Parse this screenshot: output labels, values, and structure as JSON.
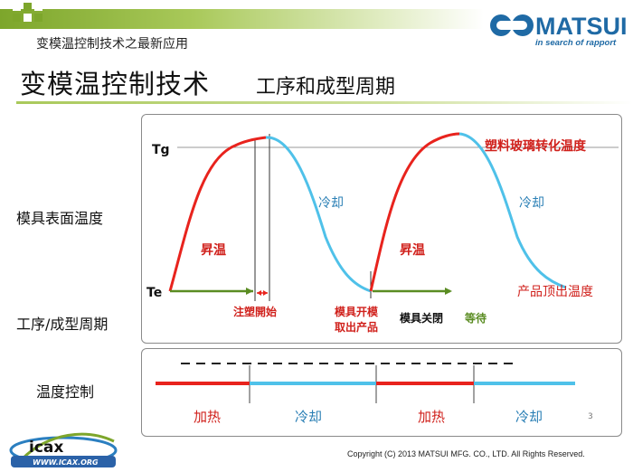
{
  "header": {
    "subtitle": "变模温控制技术之最新应用",
    "title": "变模温控制技术",
    "title_sub": "工序和成型周期"
  },
  "logo": {
    "name": "MATSUI",
    "tagline": "in search of rapport"
  },
  "row_labels": {
    "surface_temp": "模具表面温度",
    "process_cycle": "工序/成型周期",
    "temp_control": "温度控制"
  },
  "diagram": {
    "tg": "Tg",
    "te": "Te",
    "cooling_1": "冷却",
    "cooling_2": "冷却",
    "heating_1": "昇温",
    "heating_2": "昇温",
    "glass_transition": "塑料玻璃转化温度",
    "ejection_temp": "产品顶出温度",
    "injection_start": "注塑開始",
    "mold_open": "模具开模",
    "take_out": "取出产品",
    "mold_close": "模具关閉",
    "wait": "等待"
  },
  "control": {
    "heat_1": "加热",
    "cool_1": "冷却",
    "heat_2": "加热",
    "cool_2": "冷却"
  },
  "footer": {
    "page_number": "3",
    "copyright": "Copyright (C) 2013  MATSUI MFG. CO., LTD.  All Rights Reserved.",
    "partner_logo": "icax",
    "partner_url": "WWW.ICAX.ORG"
  },
  "colors": {
    "heating": "#e8231d",
    "cooling": "#4fc1e9",
    "process_green": "#5a8c22",
    "accent_red": "#d0211c",
    "brand_blue": "#1f6aa5",
    "header_green": "#7da62b"
  }
}
